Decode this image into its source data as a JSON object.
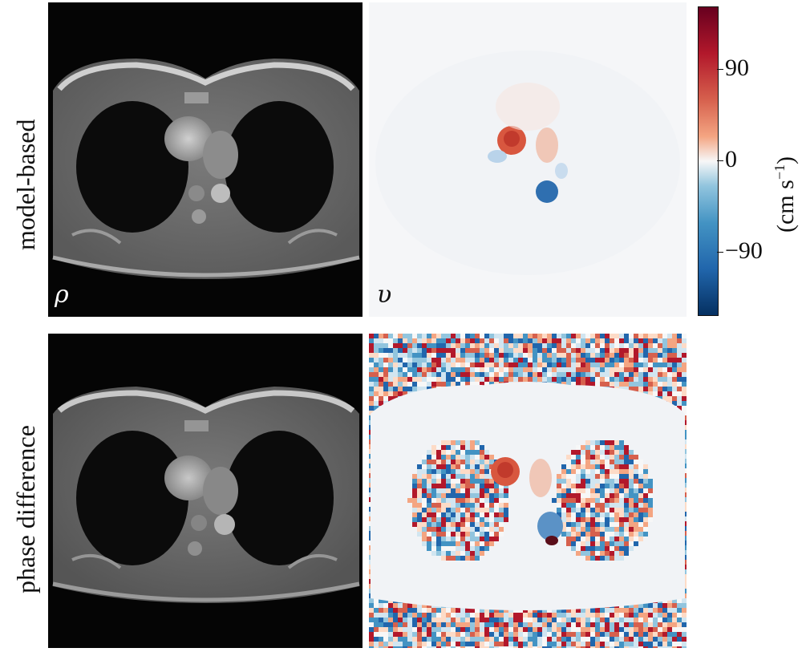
{
  "rows": [
    {
      "label": "model-based"
    },
    {
      "label": "phase difference"
    }
  ],
  "panels": {
    "magnitude_label": "ρ",
    "velocity_label": "υ"
  },
  "colorbar": {
    "ticks": [
      "90",
      "0",
      "−90"
    ],
    "unit_prefix": "(cm s",
    "unit_exp": "−1",
    "unit_suffix": ")",
    "colors": {
      "high": "#a30d23",
      "mid": "#f7f7f7",
      "low": "#1d4f8f"
    }
  }
}
